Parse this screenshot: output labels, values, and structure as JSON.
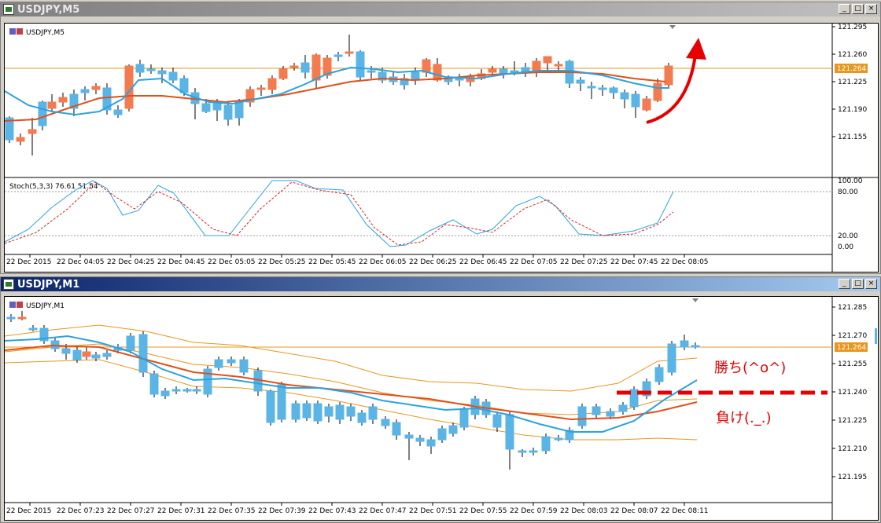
{
  "windows": [
    {
      "title": "USDJPY,M5",
      "chart_label": "USDJPY,M5",
      "stoch_label": "Stoch(5,3,3) 76.61 51.54",
      "current_price": "121.264",
      "price_ticks": [
        "121.295",
        "121.260",
        "121.225",
        "121.190",
        "121.155"
      ],
      "stoch_ticks": [
        "100.00",
        "80.00",
        "20.00",
        "0.00"
      ],
      "time_ticks": [
        "22 Dec 2015",
        "22 Dec 04:05",
        "22 Dec 04:25",
        "22 Dec 04:45",
        "22 Dec 05:05",
        "22 Dec 05:25",
        "22 Dec 05:45",
        "22 Dec 06:05",
        "22 Dec 06:25",
        "22 Dec 06:45",
        "22 Dec 07:05",
        "22 Dec 07:25",
        "22 Dec 07:45",
        "22 Dec 08:05"
      ]
    },
    {
      "title": "USDJPY,M1",
      "chart_label": "USDJPY,M1",
      "current_price": "121.264",
      "price_ticks": [
        "121.285",
        "121.270",
        "121.255",
        "121.240",
        "121.225",
        "121.210",
        "121.195"
      ],
      "time_ticks": [
        "22 Dec 2015",
        "22 Dec 07:23",
        "22 Dec 07:27",
        "22 Dec 07:31",
        "22 Dec 07:35",
        "22 Dec 07:39",
        "22 Dec 07:43",
        "22 Dec 07:47",
        "22 Dec 07:51",
        "22 Dec 07:55",
        "22 Dec 07:59",
        "22 Dec 08:03",
        "22 Dec 08:07",
        "22 Dec 08:11"
      ],
      "annotations": {
        "win": "勝ち(^o^)",
        "lose": "負け(._.)"
      }
    }
  ],
  "window_buttons": {
    "minimize": "_",
    "restore": "□",
    "close": "×"
  },
  "colors": {
    "bull": "#f47b4f",
    "bear": "#5ab4e6",
    "ma_fast": "#2ba3e0",
    "ma_slow": "#e0501a",
    "band": "#e8961e",
    "annotation": "#e60000"
  }
}
